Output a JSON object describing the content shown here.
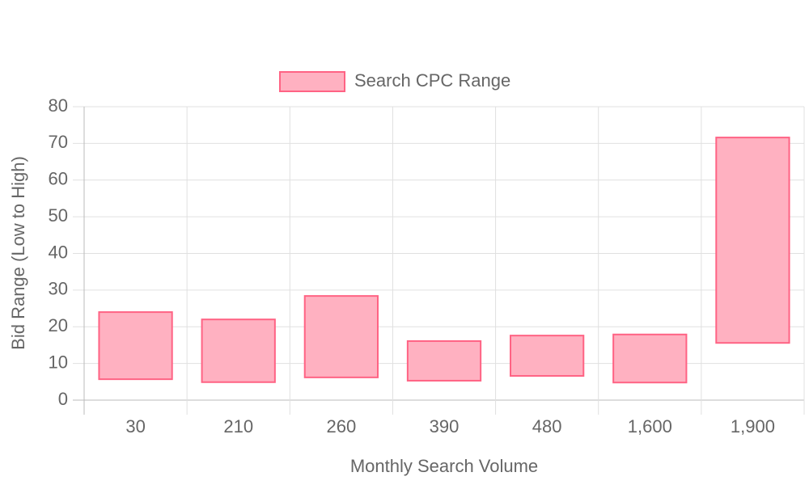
{
  "chart_data": {
    "type": "bar",
    "categories": [
      "30",
      "210",
      "260",
      "390",
      "480",
      "1,600",
      "1,900"
    ],
    "series": [
      {
        "name": "Search CPC Range",
        "color": "#ff6384",
        "fill": "#ffb1c1",
        "values": [
          [
            5.7,
            24.0
          ],
          [
            4.9,
            22.0
          ],
          [
            6.2,
            28.4
          ],
          [
            5.3,
            16.1
          ],
          [
            6.6,
            17.6
          ],
          [
            4.8,
            17.9
          ],
          [
            15.6,
            71.6
          ]
        ]
      }
    ],
    "x_label": "Monthly Search Volume",
    "y_label": "Bid Range (Low to High)",
    "ylim": [
      0,
      80
    ],
    "yticks": [
      0,
      10,
      20,
      30,
      40,
      50,
      60,
      70,
      80
    ],
    "grid": true,
    "legend": "top"
  }
}
